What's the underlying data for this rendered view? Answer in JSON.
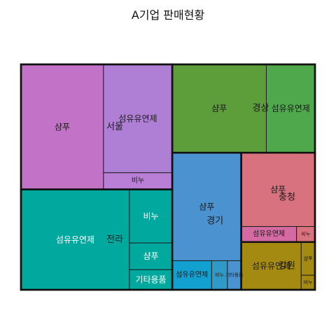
{
  "chart_data": {
    "type": "treemap",
    "title": "A기업 판매현황",
    "regions": [
      {
        "name": "서울",
        "color": "#c373c7",
        "items": [
          {
            "name": "샴푸",
            "value": 36,
            "color": "#c373c7"
          },
          {
            "name": "섬유유연제",
            "value": 26,
            "color": "#af7fd6"
          },
          {
            "name": "비누",
            "value": 4,
            "color": "#b97fd6"
          }
        ]
      },
      {
        "name": "전라",
        "color": "#00a89e",
        "items": [
          {
            "name": "섬유유연제",
            "value": 38,
            "color": "#00a89e"
          },
          {
            "name": "비누",
            "value": 8,
            "color": "#00a89e"
          },
          {
            "name": "샴푸",
            "value": 4,
            "color": "#00a89e"
          },
          {
            "name": "기타용품",
            "value": 3,
            "color": "#00a89e"
          }
        ]
      },
      {
        "name": "경상",
        "color": "#5e9e3a",
        "items": [
          {
            "name": "샴푸",
            "value": 29,
            "color": "#5e9e3a"
          },
          {
            "name": "섬유유연제",
            "value": 15,
            "color": "#4fa84c"
          }
        ]
      },
      {
        "name": "경기",
        "color": "#4a92d0",
        "items": [
          {
            "name": "샴푸",
            "value": 26,
            "color": "#4a92d0"
          },
          {
            "name": "섬유유연제",
            "value": 4,
            "color": "#11a0cf"
          },
          {
            "name": "비누",
            "value": 1.6,
            "color": "#2f9ac8"
          },
          {
            "name": "기타용품",
            "value": 1.4,
            "color": "#4a92d0"
          }
        ]
      },
      {
        "name": "충청",
        "color": "#d8727f",
        "items": [
          {
            "name": "샴푸",
            "value": 19,
            "color": "#d8727f"
          },
          {
            "name": "섬유유연제",
            "value": 3,
            "color": "#d36aa2"
          },
          {
            "name": "비누",
            "value": 1,
            "color": "#d8727f"
          }
        ]
      },
      {
        "name": "강원",
        "color": "#a58a12",
        "items": [
          {
            "name": "섬유유연제",
            "value": 10,
            "color": "#a58a12"
          },
          {
            "name": "샴푸",
            "value": 1.6,
            "color": "#a58a12"
          },
          {
            "name": "비누",
            "value": 0.7,
            "color": "#a58a12"
          }
        ]
      }
    ]
  }
}
